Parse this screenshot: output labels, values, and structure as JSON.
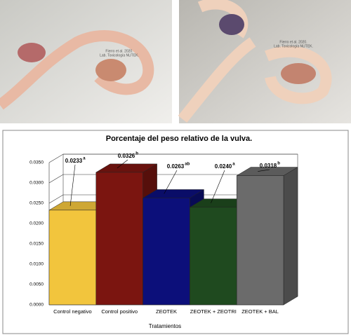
{
  "photos": [
    {
      "caption": [
        "Fierro et al. 2020.",
        "Lab. Toxicología NUTEK."
      ]
    },
    {
      "caption": [
        "Fierro et al. 2020.",
        "Lab. Toxicología NUTEK."
      ]
    }
  ],
  "chart_data": {
    "type": "bar3d",
    "title": "Porcentaje del peso relativo de la vulva.",
    "x_label": "Tratamientos",
    "categories": [
      "Control negativo",
      "Control positivo",
      "ZEOTEK",
      "ZEOTEK + ZEOTRI",
      "ZEOTEK + BAL"
    ],
    "values": [
      0.0233,
      0.0326,
      0.0263,
      0.024,
      0.0318
    ],
    "value_labels": [
      "0.0233",
      "0.0326",
      "0.0263",
      "0.0240",
      "0.0318"
    ],
    "superscripts": [
      "a",
      "b",
      "ab",
      "a",
      "b"
    ],
    "colors": [
      "#f2c53d",
      "#7b1510",
      "#0c0f7a",
      "#1f4a1f",
      "#6b6b6b"
    ],
    "ylim": [
      0,
      0.035
    ],
    "yticks": [
      {
        "value": 0,
        "label": "0.0000"
      },
      {
        "value": 0.005,
        "label": "0.0050"
      },
      {
        "value": 0.01,
        "label": "0.0100"
      },
      {
        "value": 0.015,
        "label": "0.0150"
      },
      {
        "value": 0.02,
        "label": "0.0200"
      },
      {
        "value": 0.025,
        "label": "0.0250"
      },
      {
        "value": 0.03,
        "label": "0.0300"
      },
      {
        "value": 0.035,
        "label": "0.0350"
      }
    ],
    "grid": true
  }
}
